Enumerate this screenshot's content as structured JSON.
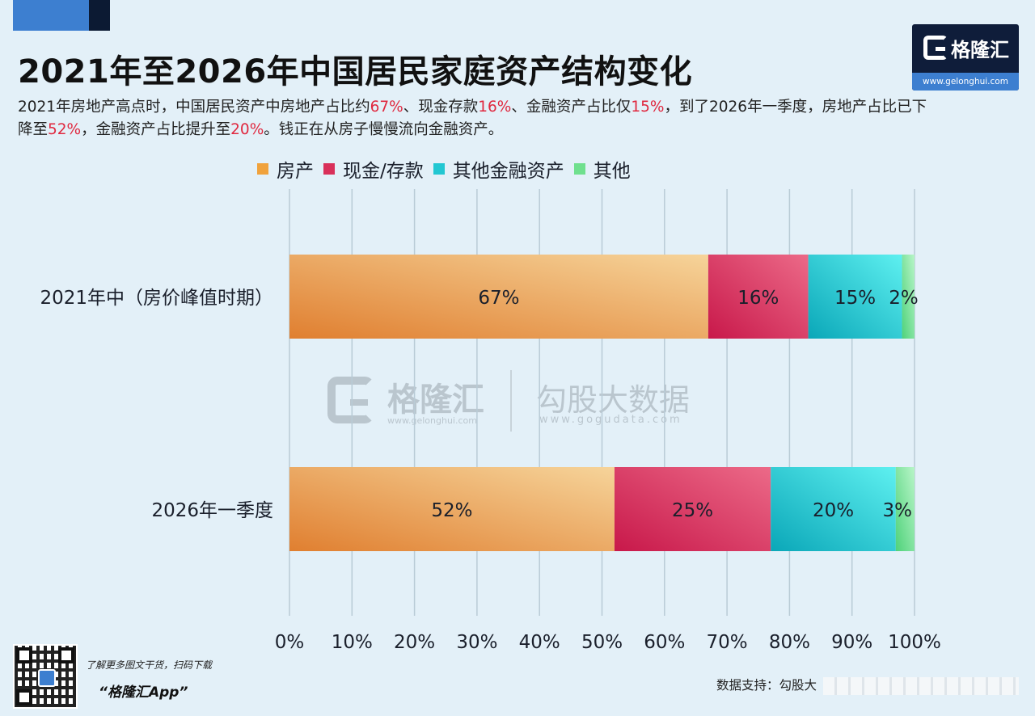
{
  "header": {
    "title": "2021年至2026年中国居民家庭资产结构变化",
    "subtitle_parts": [
      {
        "text": "2021年房地产高点时，中国居民资产中房地产占比约",
        "hl": false
      },
      {
        "text": "67%",
        "hl": true
      },
      {
        "text": "、现金存款",
        "hl": false
      },
      {
        "text": "16%",
        "hl": true
      },
      {
        "text": "、金融资产占比仅",
        "hl": false
      },
      {
        "text": "15%",
        "hl": true
      },
      {
        "text": "，到了2026年一季度，房地产占比已下降至",
        "hl": false
      },
      {
        "text": "52%",
        "hl": true
      },
      {
        "text": "，金融资产占比提升至",
        "hl": false
      },
      {
        "text": "20%",
        "hl": true
      },
      {
        "text": "。钱正在从房子慢慢流向金融资产。",
        "hl": false
      }
    ]
  },
  "logo": {
    "name": "格隆汇",
    "url": "www.gelonghui.com"
  },
  "watermark": {
    "name": "格隆汇",
    "url": "www.gelonghui.com",
    "name2": "勾股大数据",
    "url2": "www.gogudata.com"
  },
  "footer": {
    "qr_text": "了解更多图文干货，扫码下载",
    "app_name": "“格隆汇App”",
    "source": "数据支持：勾股大"
  },
  "colors": {
    "highlight": "#e0283f",
    "background": "#e3f0f8"
  },
  "chart_data": {
    "type": "bar",
    "orientation": "horizontal",
    "stacked": true,
    "categories": [
      "2021年中（房价峰值时期）",
      "2026年一季度"
    ],
    "series": [
      {
        "name": "房产",
        "values": [
          67,
          52
        ],
        "color": "#f0a23c"
      },
      {
        "name": "现金/存款",
        "values": [
          16,
          25
        ],
        "color": "#d9305a"
      },
      {
        "name": "其他金融资产",
        "values": [
          15,
          20
        ],
        "color": "#22c7d2"
      },
      {
        "name": "其他",
        "values": [
          2,
          3
        ],
        "color": "#6fe08e"
      }
    ],
    "data_labels": [
      [
        "67%",
        "16%",
        "15%",
        "2%"
      ],
      [
        "52%",
        "25%",
        "20%",
        "3%"
      ]
    ],
    "xlim": [
      0,
      100
    ],
    "xticks": [
      0,
      10,
      20,
      30,
      40,
      50,
      60,
      70,
      80,
      90,
      100
    ],
    "xtick_labels": [
      "0%",
      "10%",
      "20%",
      "30%",
      "40%",
      "50%",
      "60%",
      "70%",
      "80%",
      "90%",
      "100%"
    ],
    "grid": "vertical",
    "legend_position": "top"
  }
}
